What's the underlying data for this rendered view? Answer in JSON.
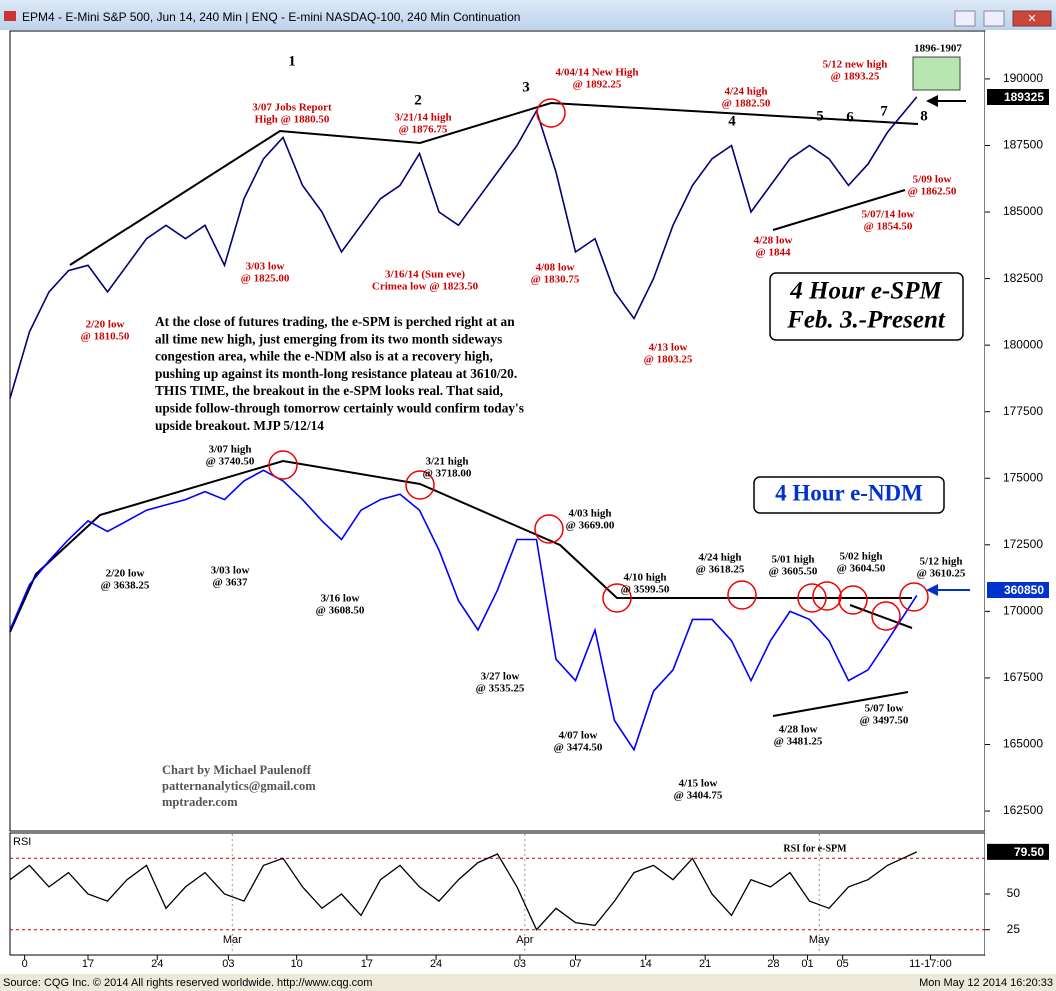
{
  "window": {
    "title": "EPM4 - E-Mini S&P 500, Jun 14, 240 Min  |  ENQ - E-mini NASDAQ-100, 240 Min Continuation",
    "footer_left": "Source: CQG Inc. © 2014 All rights reserved worldwide. http://www.cqg.com",
    "footer_right": "Mon May 12 2014 16:20:33"
  },
  "chart_data": {
    "type": "line",
    "x": [
      0,
      2,
      4,
      6,
      8,
      10,
      12,
      14,
      16,
      18,
      20,
      22,
      24,
      26,
      28,
      30,
      32,
      34,
      36,
      38,
      40,
      42,
      44,
      46,
      48,
      50,
      52,
      54,
      56,
      58,
      60,
      62,
      64,
      66,
      68,
      70,
      72,
      74,
      76,
      78,
      80,
      82,
      84,
      86,
      88,
      90,
      93
    ],
    "xlim": [
      0,
      100
    ],
    "xticks": [
      {
        "value": 1.5,
        "label": "0"
      },
      {
        "value": 8,
        "label": "17"
      },
      {
        "value": 15.1,
        "label": "24"
      },
      {
        "value": 22.4,
        "label": "03"
      },
      {
        "value": 29.4,
        "label": "10"
      },
      {
        "value": 36.6,
        "label": "17"
      },
      {
        "value": 43.7,
        "label": "24"
      },
      {
        "value": 52.3,
        "label": "03"
      },
      {
        "value": 58,
        "label": "07"
      },
      {
        "value": 65.2,
        "label": "14"
      },
      {
        "value": 71.3,
        "label": "21"
      },
      {
        "value": 78.3,
        "label": "28"
      },
      {
        "value": 81.8,
        "label": "01"
      },
      {
        "value": 85.4,
        "label": "05"
      },
      {
        "value": 94.4,
        "label": "11-17:00"
      }
    ],
    "month_ticks": [
      {
        "value": 22.8,
        "label": "Mar"
      },
      {
        "value": 52.8,
        "label": "Apr"
      },
      {
        "value": 83,
        "label": "May"
      }
    ],
    "ylim": [
      161750,
      191800
    ],
    "yticks": [
      162500,
      165000,
      167500,
      170000,
      172500,
      175000,
      177500,
      180000,
      182500,
      185000,
      187500,
      190000
    ],
    "series": [
      {
        "color": "#00007a",
        "values": [
          178000,
          180500,
          182000,
          182800,
          183000,
          182000,
          183000,
          184000,
          184500,
          184000,
          184500,
          183000,
          185500,
          187000,
          187800,
          186000,
          185000,
          183500,
          184500,
          185500,
          186000,
          187200,
          185000,
          184500,
          185500,
          186500,
          187500,
          188800,
          186500,
          183500,
          184000,
          182000,
          181000,
          182500,
          184500,
          186000,
          187000,
          187500,
          185000,
          186000,
          187000,
          187500,
          187000,
          186000,
          186800,
          188000,
          189325
        ]
      },
      {
        "color": "#0000ff",
        "values": [
          169300,
          171000,
          171900,
          172700,
          173400,
          173000,
          173400,
          173800,
          174000,
          174200,
          174500,
          174200,
          174900,
          175300,
          174900,
          174200,
          173400,
          172700,
          173800,
          174200,
          174400,
          173800,
          172300,
          170400,
          169300,
          170800,
          172700,
          172700,
          168200,
          167400,
          169300,
          165900,
          164800,
          167000,
          167800,
          169700,
          169700,
          168900,
          167400,
          168900,
          170000,
          169700,
          168900,
          167400,
          167800,
          168900,
          170600
        ]
      }
    ],
    "price_badges": [
      189325,
      360850
    ],
    "wave_labels": [
      "1",
      "2",
      "3",
      "4",
      "5",
      "6",
      "7",
      "8"
    ],
    "annotation_groups": [
      {
        "color": "#cc0000",
        "items": [
          {
            "lines": [
              "3/07 Jobs Report",
              "High @ 1880.50"
            ]
          },
          {
            "lines": [
              "3/21/14 high",
              "@ 1876.75"
            ]
          },
          {
            "lines": [
              "4/04/14 New High",
              "@ 1892.25"
            ]
          },
          {
            "lines": [
              "4/24 high",
              "@ 1882.50"
            ]
          },
          {
            "lines": [
              "5/12 new high",
              "@ 1893.25"
            ]
          },
          {
            "lines": [
              "5/09 low",
              "@ 1862.50"
            ]
          },
          {
            "lines": [
              "5/07/14 low",
              "@ 1854.50"
            ]
          },
          {
            "lines": [
              "4/28 low",
              "@ 1844"
            ]
          },
          {
            "lines": [
              "4/13 low",
              "@ 1803.25"
            ]
          },
          {
            "lines": [
              "4/08 low",
              "@ 1830.75"
            ]
          },
          {
            "lines": [
              "3/16/14 (Sun eve)",
              "Crimea low @ 1823.50"
            ]
          },
          {
            "lines": [
              "3/03 low",
              "@ 1825.00"
            ]
          },
          {
            "lines": [
              "2/20 low",
              "@ 1810.50"
            ]
          }
        ]
      },
      {
        "color": "#000000",
        "items": [
          {
            "lines": [
              "3/07 high",
              "@ 3740.50"
            ]
          },
          {
            "lines": [
              "3/21 high",
              "@ 3718.00"
            ]
          },
          {
            "lines": [
              "4/03 high",
              "@ 3669.00"
            ]
          },
          {
            "lines": [
              "4/10 high",
              "@ 3599.50"
            ]
          },
          {
            "lines": [
              "4/24 high",
              "@ 3618.25"
            ]
          },
          {
            "lines": [
              "5/01 high",
              "@ 3605.50"
            ]
          },
          {
            "lines": [
              "5/02 high",
              "@ 3604.50"
            ]
          },
          {
            "lines": [
              "5/12 high",
              "@ 3610.25"
            ]
          },
          {
            "lines": [
              "2/20 low",
              "@ 3638.25"
            ]
          },
          {
            "lines": [
              "3/03 low",
              "@ 3637"
            ]
          },
          {
            "lines": [
              "3/16 low",
              "@ 3608.50"
            ]
          },
          {
            "lines": [
              "3/27 low",
              "@ 3535.25"
            ]
          },
          {
            "lines": [
              "4/07 low",
              "@ 3474.50"
            ]
          },
          {
            "lines": [
              "4/15 low",
              "@ 3404.75"
            ]
          },
          {
            "lines": [
              "4/28 low",
              "@ 3481.25"
            ]
          },
          {
            "lines": [
              "5/07 low",
              "@ 3497.50"
            ]
          }
        ]
      }
    ],
    "chart_titles": [
      {
        "lines": [
          "4 Hour e-SPM",
          "Feb. 3.-Present"
        ]
      },
      {
        "lines": [
          "4 Hour e-NDM"
        ]
      }
    ],
    "commentary": [
      "At the close of futures trading, the e-SPM is perched right at an",
      "all time new high, just emerging from its two month sideways",
      "congestion area, while the e-NDM also is at a recovery high,",
      "pushing up against its month-long resistance plateau at 3610/20.",
      "THIS TIME, the breakout in the e-SPM looks real. That said,",
      "upside follow-through tomorrow certainly would confirm today's",
      "upside breakout.  MJP  5/12/14"
    ],
    "credit": [
      "Chart by Michael Paulenoff",
      "patternanalytics@gmail.com",
      "mptrader.com"
    ],
    "target_box": "1896-1907",
    "rsi": {
      "label": "RSI",
      "note": "RSI for e-SPM",
      "color": "#000000",
      "values": [
        60,
        70,
        55,
        65,
        50,
        45,
        60,
        70,
        40,
        55,
        65,
        50,
        45,
        70,
        75,
        55,
        40,
        50,
        35,
        60,
        70,
        55,
        45,
        60,
        72,
        78,
        55,
        25,
        40,
        30,
        28,
        45,
        65,
        70,
        60,
        75,
        50,
        35,
        60,
        55,
        65,
        45,
        40,
        55,
        60,
        70,
        79.5
      ],
      "ylim": [
        8,
        92
      ],
      "yticks": [
        50,
        25
      ],
      "reference_lines": [
        75,
        25
      ],
      "badge": {
        "value": 79.5,
        "label": "79.50"
      }
    }
  }
}
